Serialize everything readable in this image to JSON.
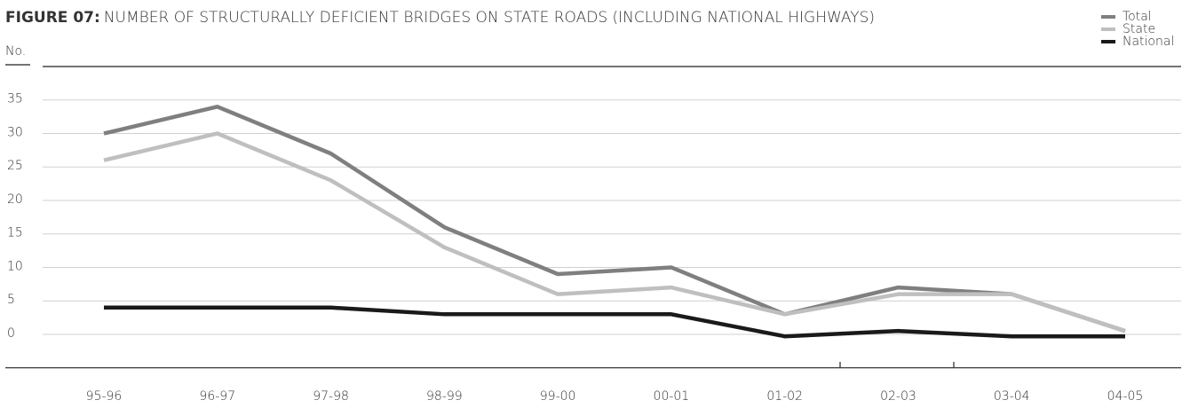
{
  "chart_data": {
    "type": "line",
    "figure": "FIGURE 07:",
    "title": "NUMBER OF STRUCTURALLY DEFICIENT BRIDGES ON STATE ROADS (INCLUDING NATIONAL HIGHWAYS)",
    "y_label": "No.",
    "categories": [
      "95-96",
      "96-97",
      "97-98",
      "98-99",
      "99-00",
      "00-01",
      "01-02",
      "02-03",
      "03-04",
      "04-05"
    ],
    "series": [
      {
        "name": "Total",
        "color": "#7f7f7f",
        "values": [
          30,
          34,
          27,
          16,
          9,
          10,
          3,
          7,
          6,
          0.5
        ]
      },
      {
        "name": "State",
        "color": "#bfbfbf",
        "values": [
          26,
          30,
          23,
          13,
          6,
          7,
          3,
          6,
          6,
          0.5
        ]
      },
      {
        "name": "National",
        "color": "#1a1a1a",
        "values": [
          4,
          4,
          4,
          3,
          3,
          3,
          -0.3,
          0.5,
          -0.3,
          -0.3
        ]
      }
    ],
    "ylim": [
      -5,
      40
    ],
    "yticks": [
      0,
      5,
      10,
      15,
      20,
      25,
      30,
      35
    ],
    "grid": true,
    "legend": "top-right"
  }
}
